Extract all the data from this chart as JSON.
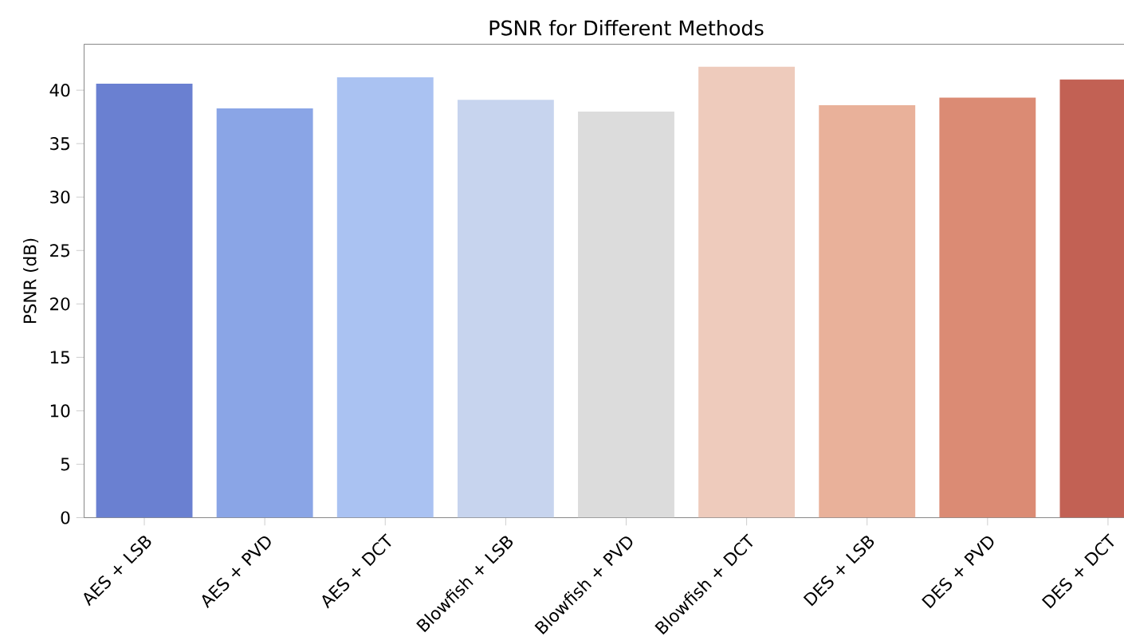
{
  "chart_data": {
    "type": "bar",
    "title": "PSNR for Different Methods",
    "ylabel": "PSNR (dB)",
    "categories": [
      "AES + LSB",
      "AES + PVD",
      "AES + DCT",
      "Blowfish + LSB",
      "Blowfish + PVD",
      "Blowfish + DCT",
      "DES + LSB",
      "DES + PVD",
      "DES + DCT"
    ],
    "values": [
      40.6,
      38.3,
      41.2,
      39.1,
      38.0,
      42.2,
      38.6,
      39.3,
      41.0
    ],
    "colors": [
      "#6a80d1",
      "#8aa5e6",
      "#aac2f2",
      "#c7d4ee",
      "#dcdcdc",
      "#eecbbc",
      "#e9b19a",
      "#db8b74",
      "#c26154"
    ],
    "ylim": [
      0,
      44.3
    ],
    "yticks": [
      0,
      5,
      10,
      15,
      20,
      25,
      30,
      35,
      40
    ],
    "grid": false
  }
}
